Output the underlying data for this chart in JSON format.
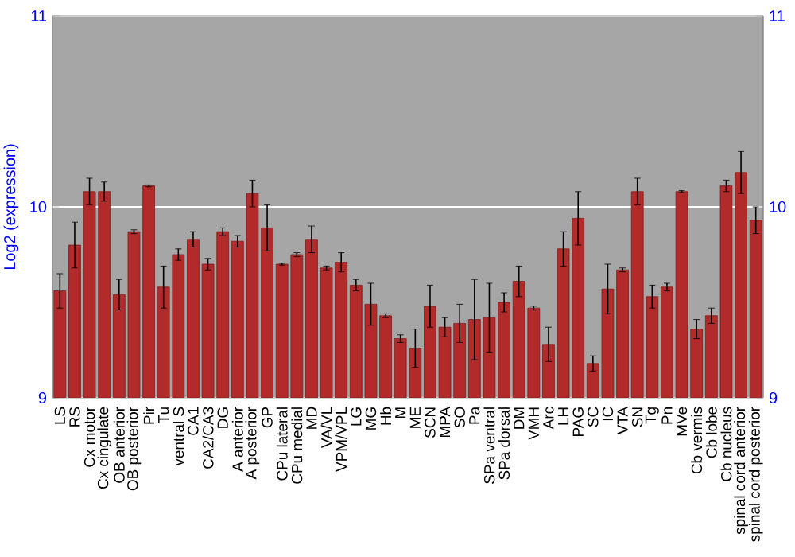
{
  "chart_data": {
    "type": "bar",
    "ylabel": "Log2 (expression)",
    "categories": [
      "LS",
      "RS",
      "Cx motor",
      "Cx cingulate",
      "OB anterior",
      "OB posterior",
      "Pir",
      "Tu",
      "ventral S",
      "CA1",
      "CA2/CA3",
      "DG",
      "A anterior",
      "A posterior",
      "GP",
      "CPu lateral",
      "CPu medial",
      "MD",
      "VA/VL",
      "VPM/VPL",
      "LG",
      "MG",
      "Hb",
      "M",
      "ME",
      "SCN",
      "MPA",
      "SO",
      "Pa",
      "SPa ventral",
      "SPa dorsal",
      "DM",
      "VMH",
      "Arc",
      "LH",
      "PAG",
      "SC",
      "IC",
      "VTA",
      "SN",
      "Tg",
      "Pn",
      "MVe",
      "Cb vermis",
      "Cb lobe",
      "Cb nucleus",
      "spinal cord anterior",
      "spinal cord posterior"
    ],
    "values": [
      9.56,
      9.8,
      10.08,
      10.08,
      9.54,
      9.87,
      10.11,
      9.58,
      9.75,
      9.83,
      9.7,
      9.87,
      9.82,
      10.07,
      9.89,
      9.7,
      9.75,
      9.83,
      9.68,
      9.71,
      9.59,
      9.49,
      9.43,
      9.31,
      9.26,
      9.48,
      9.37,
      9.39,
      9.41,
      9.42,
      9.5,
      9.61,
      9.47,
      9.28,
      9.78,
      9.94,
      9.18,
      9.57,
      9.67,
      10.08,
      9.53,
      9.58,
      10.08,
      9.36,
      9.43,
      10.11,
      10.18,
      9.93
    ],
    "errors": [
      0.09,
      0.12,
      0.07,
      0.05,
      0.08,
      0.01,
      0.005,
      0.11,
      0.03,
      0.04,
      0.03,
      0.02,
      0.03,
      0.07,
      0.12,
      0.005,
      0.01,
      0.07,
      0.01,
      0.05,
      0.03,
      0.11,
      0.01,
      0.02,
      0.1,
      0.11,
      0.05,
      0.1,
      0.21,
      0.18,
      0.05,
      0.08,
      0.01,
      0.09,
      0.09,
      0.14,
      0.04,
      0.13,
      0.01,
      0.07,
      0.06,
      0.02,
      0.005,
      0.05,
      0.04,
      0.03,
      0.11,
      0.07
    ],
    "color": "#b22a2a",
    "ylim": [
      9,
      11
    ],
    "yticks": [
      9,
      10,
      11
    ],
    "y2lim": [
      9,
      11
    ],
    "y2ticks": [
      9,
      10,
      11
    ],
    "grid": "y"
  }
}
